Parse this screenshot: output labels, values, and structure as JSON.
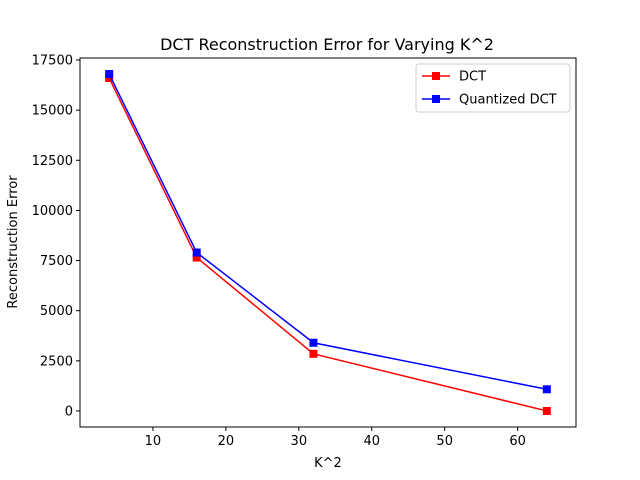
{
  "chart_data": {
    "type": "line",
    "title": "DCT Reconstruction Error for Varying K^2",
    "xlabel": "K^2",
    "ylabel": "Reconstruction Error",
    "x": [
      4,
      16,
      32,
      64
    ],
    "xlim": [
      0,
      68
    ],
    "ylim": [
      -800,
      17600
    ],
    "xticks": [
      10,
      20,
      30,
      40,
      50,
      60
    ],
    "yticks": [
      0,
      2500,
      5000,
      7500,
      10000,
      12500,
      15000,
      17500
    ],
    "grid": false,
    "legend_position": "top-right",
    "series": [
      {
        "name": "DCT",
        "color": "#ff0000",
        "marker": "square",
        "values": [
          16600,
          7650,
          2850,
          0
        ]
      },
      {
        "name": "Quantized DCT",
        "color": "#0000ff",
        "marker": "square",
        "values": [
          16800,
          7900,
          3400,
          1080
        ]
      }
    ]
  }
}
